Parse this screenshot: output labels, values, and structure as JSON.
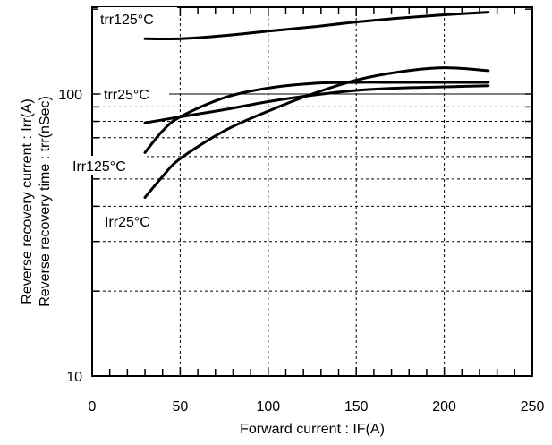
{
  "chart_data": {
    "type": "line",
    "title": "",
    "xlabel": "Forward current : IF(A)",
    "ylabel_lines": [
      "Reverse recovery current : Irr(A)",
      "Reverse recovery time : trr(nSec)"
    ],
    "xlim": [
      0,
      250
    ],
    "ylim": [
      10,
      200
    ],
    "yscale": "log",
    "x_ticks": [
      "0",
      "50",
      "100",
      "150",
      "200",
      "250"
    ],
    "y_ticks": [
      "10",
      "100"
    ],
    "grid": true,
    "series": [
      {
        "name": "trr125°C",
        "x": [
          30,
          50,
          75,
          100,
          125,
          150,
          175,
          200,
          225
        ],
        "y": [
          157,
          157,
          161,
          167,
          173,
          180,
          186,
          191,
          195
        ]
      },
      {
        "name": "trr25°C",
        "x": [
          30,
          50,
          75,
          100,
          125,
          150,
          175,
          200,
          225
        ],
        "y": [
          79,
          83,
          88,
          94,
          99,
          103,
          105,
          106,
          107
        ]
      },
      {
        "name": "Irr125°C",
        "x": [
          30,
          40,
          50,
          75,
          100,
          125,
          150,
          175,
          200,
          225
        ],
        "y": [
          62,
          74,
          83,
          97,
          105,
          109,
          110,
          110,
          110,
          110
        ]
      },
      {
        "name": "Irr25°C",
        "x": [
          30,
          40,
          50,
          75,
          100,
          125,
          150,
          175,
          200,
          225
        ],
        "y": [
          43,
          51,
          59,
          74,
          87,
          100,
          112,
          120,
          124,
          121
        ]
      }
    ]
  }
}
